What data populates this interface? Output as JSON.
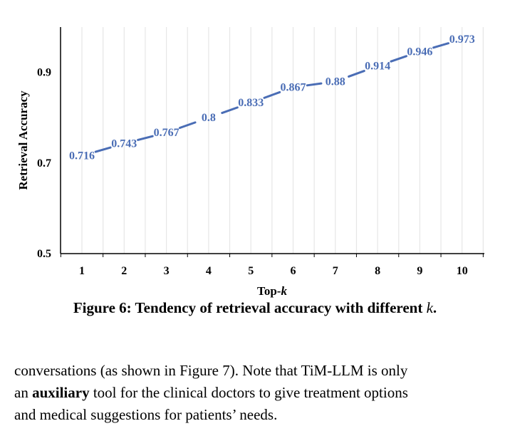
{
  "chart_data": {
    "type": "line",
    "x": [
      1,
      2,
      3,
      4,
      5,
      6,
      7,
      8,
      9,
      10
    ],
    "series": [
      {
        "values": [
          0.716,
          0.743,
          0.767,
          0.8,
          0.833,
          0.867,
          0.88,
          0.914,
          0.946,
          0.973
        ],
        "labels": [
          "0.716",
          "0.743",
          "0.767",
          "0.8",
          "0.833",
          "0.867",
          "0.88",
          "0.914",
          "0.946",
          "0.973"
        ]
      }
    ],
    "xlabel_text": "Top-",
    "xlabel_var": "k",
    "ylabel": "Retrieval Accuracy",
    "ylim": [
      0.5,
      1.0
    ],
    "yticks": [
      "0.5",
      "0.7",
      "0.9"
    ],
    "grid": "vertical",
    "line_color": "#4a6db5"
  },
  "caption": {
    "text": "Figure 6: Tendency of retrieval accuracy with different ",
    "var": "k",
    "end": "."
  },
  "body": {
    "line1": "conversations (as shown in Figure 7). Note that TiM-LLM is only",
    "line2_pre": "an ",
    "line2_bold": "auxiliary",
    "line2_post": " tool for the clinical doctors to give treatment options",
    "line3": "and medical suggestions for patients’ needs."
  }
}
